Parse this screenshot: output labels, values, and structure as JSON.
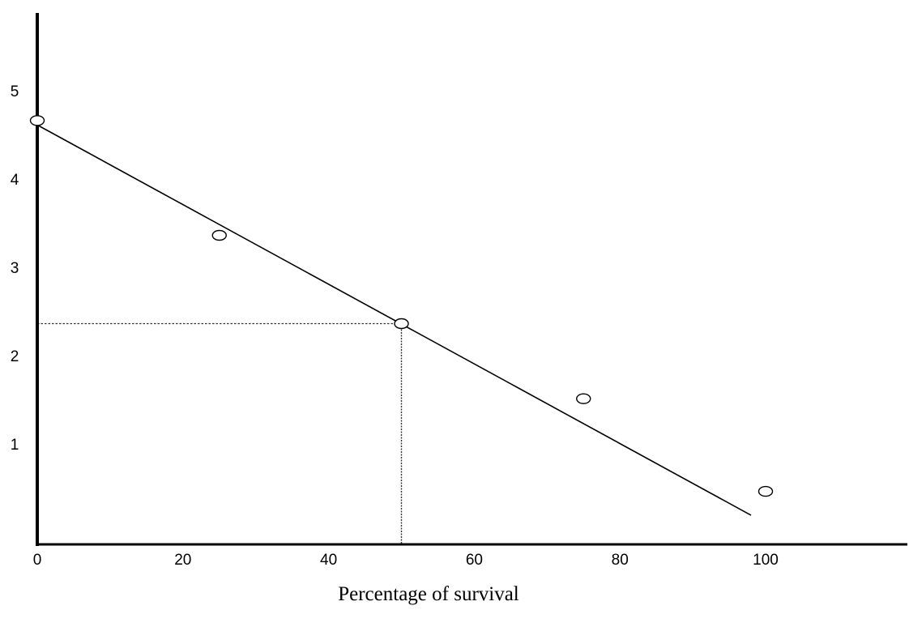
{
  "chart_data": {
    "type": "scatter",
    "title": "",
    "xlabel": "Percentage of survival",
    "ylabel": "",
    "xlim": [
      0,
      120
    ],
    "ylim": [
      0,
      6
    ],
    "x_ticks": [
      "0",
      "20",
      "40",
      "60",
      "80",
      "100"
    ],
    "y_ticks": [
      "1",
      "2",
      "3",
      "4",
      "5"
    ],
    "grid": false,
    "legend": "none",
    "points": [
      {
        "x": 0,
        "y": 4.8
      },
      {
        "x": 25,
        "y": 3.5
      },
      {
        "x": 50,
        "y": 2.5
      },
      {
        "x": 75,
        "y": 1.65
      },
      {
        "x": 100,
        "y": 0.6
      }
    ],
    "fit_line": {
      "x_start": 0,
      "y_start": 4.75,
      "x_end": 98,
      "y_end": 0.33
    },
    "reference_lines": {
      "x": 50,
      "y": 2.5,
      "style": "dotted"
    },
    "colors": {
      "axis": "#000000",
      "marker": "#000000",
      "line": "#000000"
    }
  }
}
